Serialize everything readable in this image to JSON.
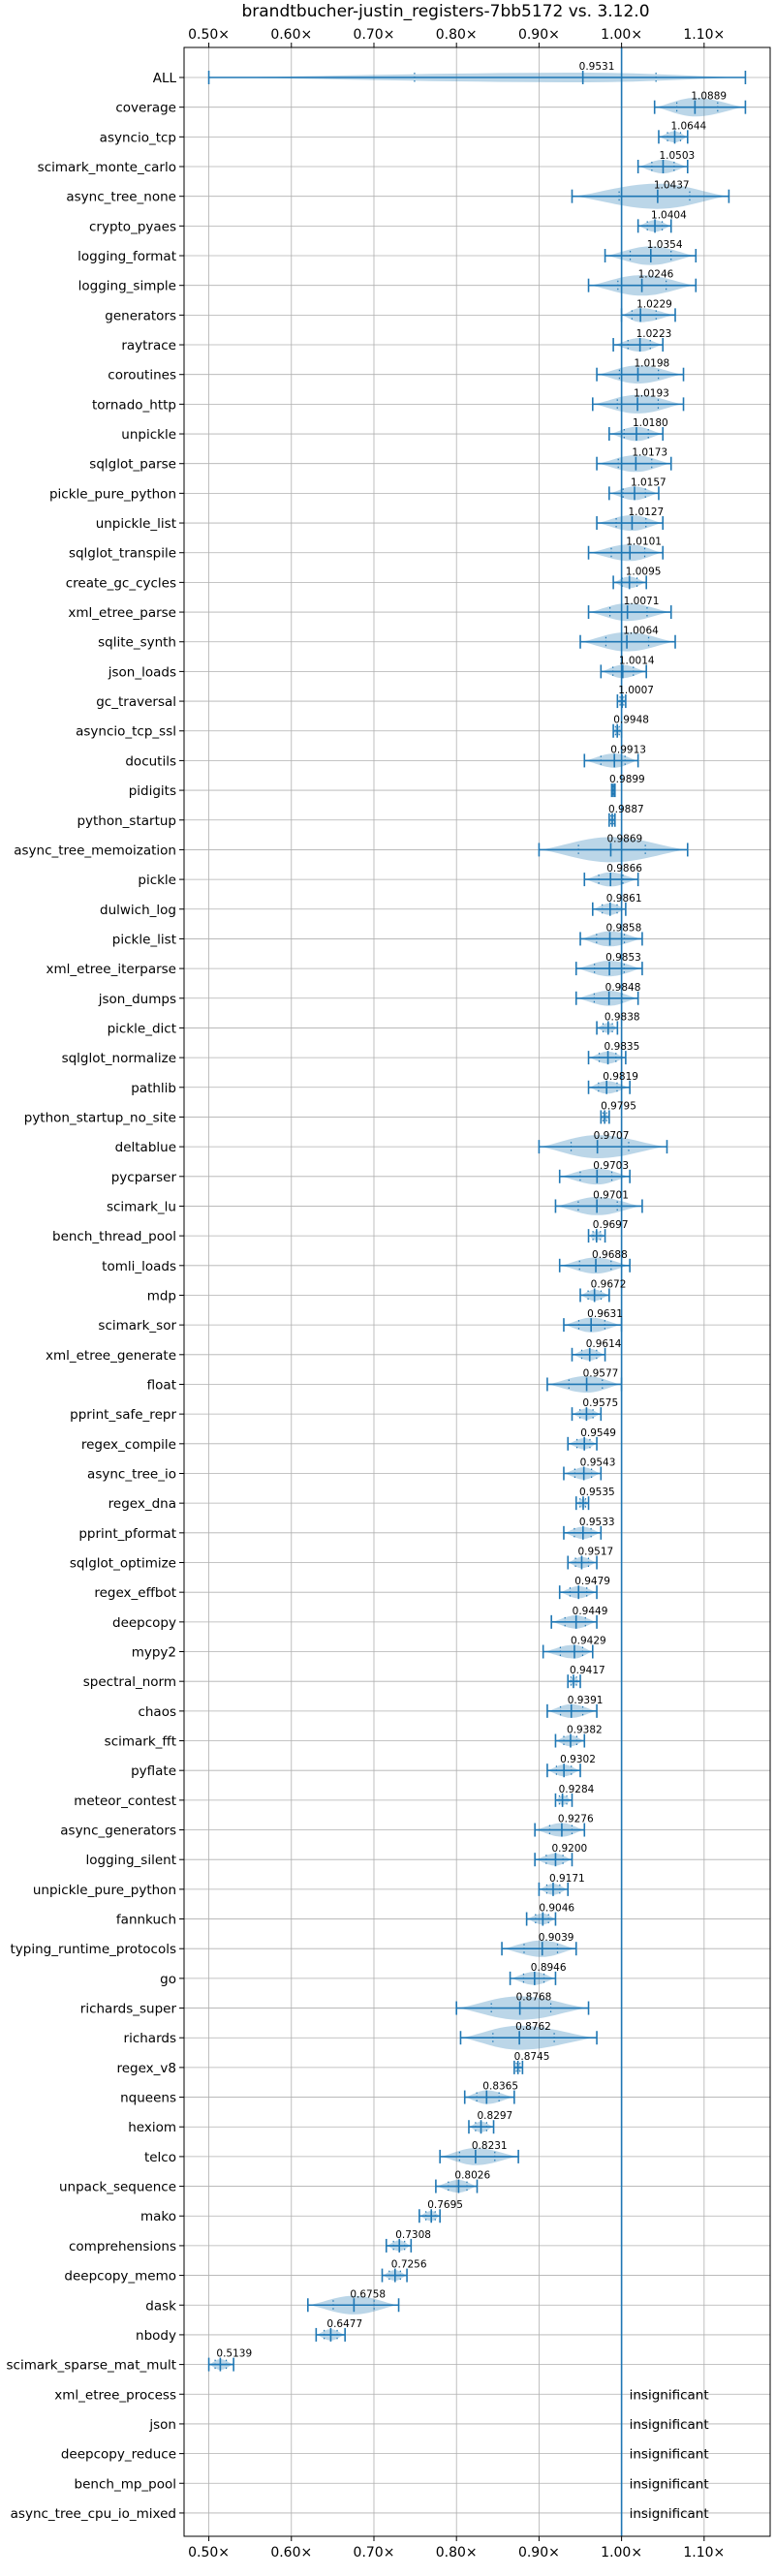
{
  "chart_data": {
    "type": "violin",
    "title": "brandtbucher-justin_registers-7bb5172 vs. 3.12.0",
    "xlim": [
      0.47,
      1.18
    ],
    "x_ticks": [
      0.5,
      0.6,
      0.7,
      0.8,
      0.9,
      1.0,
      1.1
    ],
    "x_tick_labels": [
      "0.50×",
      "0.60×",
      "0.70×",
      "0.80×",
      "0.90×",
      "1.00×",
      "1.10×"
    ],
    "reference_line": 1.0,
    "grid": true,
    "ticks_on_top_and_bottom": true,
    "color": "#1f77b4",
    "insignificant_label": "insignificant",
    "benchmarks": [
      {
        "name": "ALL",
        "value": 0.9531,
        "label": "0.9531",
        "min": 0.5,
        "max": 1.15
      },
      {
        "name": "coverage",
        "value": 1.0889,
        "label": "1.0889",
        "min": 1.04,
        "max": 1.15
      },
      {
        "name": "asyncio_tcp",
        "value": 1.0644,
        "label": "1.0644",
        "min": 1.045,
        "max": 1.08
      },
      {
        "name": "scimark_monte_carlo",
        "value": 1.0503,
        "label": "1.0503",
        "min": 1.02,
        "max": 1.08
      },
      {
        "name": "async_tree_none",
        "value": 1.0437,
        "label": "1.0437",
        "min": 0.94,
        "max": 1.13
      },
      {
        "name": "crypto_pyaes",
        "value": 1.0404,
        "label": "1.0404",
        "min": 1.02,
        "max": 1.06
      },
      {
        "name": "logging_format",
        "value": 1.0354,
        "label": "1.0354",
        "min": 0.98,
        "max": 1.09
      },
      {
        "name": "logging_simple",
        "value": 1.0246,
        "label": "1.0246",
        "min": 0.96,
        "max": 1.09
      },
      {
        "name": "generators",
        "value": 1.0229,
        "label": "1.0229",
        "min": 1.0,
        "max": 1.065
      },
      {
        "name": "raytrace",
        "value": 1.0223,
        "label": "1.0223",
        "min": 0.99,
        "max": 1.05
      },
      {
        "name": "coroutines",
        "value": 1.0198,
        "label": "1.0198",
        "min": 0.97,
        "max": 1.075
      },
      {
        "name": "tornado_http",
        "value": 1.0193,
        "label": "1.0193",
        "min": 0.965,
        "max": 1.075
      },
      {
        "name": "unpickle",
        "value": 1.018,
        "label": "1.0180",
        "min": 0.985,
        "max": 1.05
      },
      {
        "name": "sqlglot_parse",
        "value": 1.0173,
        "label": "1.0173",
        "min": 0.97,
        "max": 1.06
      },
      {
        "name": "pickle_pure_python",
        "value": 1.0157,
        "label": "1.0157",
        "min": 0.985,
        "max": 1.045
      },
      {
        "name": "unpickle_list",
        "value": 1.0127,
        "label": "1.0127",
        "min": 0.97,
        "max": 1.05
      },
      {
        "name": "sqlglot_transpile",
        "value": 1.0101,
        "label": "1.0101",
        "min": 0.96,
        "max": 1.05
      },
      {
        "name": "create_gc_cycles",
        "value": 1.0095,
        "label": "1.0095",
        "min": 0.99,
        "max": 1.03
      },
      {
        "name": "xml_etree_parse",
        "value": 1.0071,
        "label": "1.0071",
        "min": 0.96,
        "max": 1.06
      },
      {
        "name": "sqlite_synth",
        "value": 1.0064,
        "label": "1.0064",
        "min": 0.95,
        "max": 1.065
      },
      {
        "name": "json_loads",
        "value": 1.0014,
        "label": "1.0014",
        "min": 0.975,
        "max": 1.03
      },
      {
        "name": "gc_traversal",
        "value": 1.0007,
        "label": "1.0007",
        "min": 0.995,
        "max": 1.005
      },
      {
        "name": "asyncio_tcp_ssl",
        "value": 0.9948,
        "label": "0.9948",
        "min": 0.99,
        "max": 1.0
      },
      {
        "name": "docutils",
        "value": 0.9913,
        "label": "0.9913",
        "min": 0.955,
        "max": 1.02
      },
      {
        "name": "pidigits",
        "value": 0.9899,
        "label": "0.9899",
        "min": 0.988,
        "max": 0.992
      },
      {
        "name": "python_startup",
        "value": 0.9887,
        "label": "0.9887",
        "min": 0.985,
        "max": 0.992
      },
      {
        "name": "async_tree_memoization",
        "value": 0.9869,
        "label": "0.9869",
        "min": 0.9,
        "max": 1.08
      },
      {
        "name": "pickle",
        "value": 0.9866,
        "label": "0.9866",
        "min": 0.955,
        "max": 1.02
      },
      {
        "name": "dulwich_log",
        "value": 0.9861,
        "label": "0.9861",
        "min": 0.965,
        "max": 1.005
      },
      {
        "name": "pickle_list",
        "value": 0.9858,
        "label": "0.9858",
        "min": 0.95,
        "max": 1.025
      },
      {
        "name": "xml_etree_iterparse",
        "value": 0.9853,
        "label": "0.9853",
        "min": 0.945,
        "max": 1.025
      },
      {
        "name": "json_dumps",
        "value": 0.9848,
        "label": "0.9848",
        "min": 0.945,
        "max": 1.02
      },
      {
        "name": "pickle_dict",
        "value": 0.9838,
        "label": "0.9838",
        "min": 0.97,
        "max": 0.995
      },
      {
        "name": "sqlglot_normalize",
        "value": 0.9835,
        "label": "0.9835",
        "min": 0.96,
        "max": 1.005
      },
      {
        "name": "pathlib",
        "value": 0.9819,
        "label": "0.9819",
        "min": 0.96,
        "max": 1.01
      },
      {
        "name": "python_startup_no_site",
        "value": 0.9795,
        "label": "0.9795",
        "min": 0.975,
        "max": 0.985
      },
      {
        "name": "deltablue",
        "value": 0.9707,
        "label": "0.9707",
        "min": 0.9,
        "max": 1.055
      },
      {
        "name": "pycparser",
        "value": 0.9703,
        "label": "0.9703",
        "min": 0.925,
        "max": 1.01
      },
      {
        "name": "scimark_lu",
        "value": 0.9701,
        "label": "0.9701",
        "min": 0.92,
        "max": 1.025
      },
      {
        "name": "bench_thread_pool",
        "value": 0.9697,
        "label": "0.9697",
        "min": 0.96,
        "max": 0.98
      },
      {
        "name": "tomli_loads",
        "value": 0.9688,
        "label": "0.9688",
        "min": 0.925,
        "max": 1.01
      },
      {
        "name": "mdp",
        "value": 0.9672,
        "label": "0.9672",
        "min": 0.95,
        "max": 0.985
      },
      {
        "name": "scimark_sor",
        "value": 0.9631,
        "label": "0.9631",
        "min": 0.93,
        "max": 1.0
      },
      {
        "name": "xml_etree_generate",
        "value": 0.9614,
        "label": "0.9614",
        "min": 0.94,
        "max": 0.98
      },
      {
        "name": "float",
        "value": 0.9577,
        "label": "0.9577",
        "min": 0.91,
        "max": 1.0
      },
      {
        "name": "pprint_safe_repr",
        "value": 0.9575,
        "label": "0.9575",
        "min": 0.94,
        "max": 0.975
      },
      {
        "name": "regex_compile",
        "value": 0.9549,
        "label": "0.9549",
        "min": 0.935,
        "max": 0.97
      },
      {
        "name": "async_tree_io",
        "value": 0.9543,
        "label": "0.9543",
        "min": 0.93,
        "max": 0.975
      },
      {
        "name": "regex_dna",
        "value": 0.9535,
        "label": "0.9535",
        "min": 0.945,
        "max": 0.96
      },
      {
        "name": "pprint_pformat",
        "value": 0.9533,
        "label": "0.9533",
        "min": 0.93,
        "max": 0.975
      },
      {
        "name": "sqlglot_optimize",
        "value": 0.9517,
        "label": "0.9517",
        "min": 0.935,
        "max": 0.97
      },
      {
        "name": "regex_effbot",
        "value": 0.9479,
        "label": "0.9479",
        "min": 0.925,
        "max": 0.97
      },
      {
        "name": "deepcopy",
        "value": 0.9449,
        "label": "0.9449",
        "min": 0.915,
        "max": 0.97
      },
      {
        "name": "mypy2",
        "value": 0.9429,
        "label": "0.9429",
        "min": 0.905,
        "max": 0.965
      },
      {
        "name": "spectral_norm",
        "value": 0.9417,
        "label": "0.9417",
        "min": 0.935,
        "max": 0.95
      },
      {
        "name": "chaos",
        "value": 0.9391,
        "label": "0.9391",
        "min": 0.91,
        "max": 0.97
      },
      {
        "name": "scimark_fft",
        "value": 0.9382,
        "label": "0.9382",
        "min": 0.92,
        "max": 0.955
      },
      {
        "name": "pyflate",
        "value": 0.9302,
        "label": "0.9302",
        "min": 0.91,
        "max": 0.95
      },
      {
        "name": "meteor_contest",
        "value": 0.9284,
        "label": "0.9284",
        "min": 0.92,
        "max": 0.94
      },
      {
        "name": "async_generators",
        "value": 0.9276,
        "label": "0.9276",
        "min": 0.895,
        "max": 0.955
      },
      {
        "name": "logging_silent",
        "value": 0.92,
        "label": "0.9200",
        "min": 0.895,
        "max": 0.94
      },
      {
        "name": "unpickle_pure_python",
        "value": 0.9171,
        "label": "0.9171",
        "min": 0.9,
        "max": 0.935
      },
      {
        "name": "fannkuch",
        "value": 0.9046,
        "label": "0.9046",
        "min": 0.885,
        "max": 0.92
      },
      {
        "name": "typing_runtime_protocols",
        "value": 0.9039,
        "label": "0.9039",
        "min": 0.855,
        "max": 0.945
      },
      {
        "name": "go",
        "value": 0.8946,
        "label": "0.8946",
        "min": 0.865,
        "max": 0.92
      },
      {
        "name": "richards_super",
        "value": 0.8768,
        "label": "0.8768",
        "min": 0.8,
        "max": 0.96
      },
      {
        "name": "richards",
        "value": 0.8762,
        "label": "0.8762",
        "min": 0.805,
        "max": 0.97
      },
      {
        "name": "regex_v8",
        "value": 0.8745,
        "label": "0.8745",
        "min": 0.87,
        "max": 0.88
      },
      {
        "name": "nqueens",
        "value": 0.8365,
        "label": "0.8365",
        "min": 0.81,
        "max": 0.87
      },
      {
        "name": "hexiom",
        "value": 0.8297,
        "label": "0.8297",
        "min": 0.815,
        "max": 0.845
      },
      {
        "name": "telco",
        "value": 0.8231,
        "label": "0.8231",
        "min": 0.78,
        "max": 0.875
      },
      {
        "name": "unpack_sequence",
        "value": 0.8026,
        "label": "0.8026",
        "min": 0.775,
        "max": 0.825
      },
      {
        "name": "mako",
        "value": 0.7695,
        "label": "0.7695",
        "min": 0.755,
        "max": 0.78
      },
      {
        "name": "comprehensions",
        "value": 0.7308,
        "label": "0.7308",
        "min": 0.715,
        "max": 0.745
      },
      {
        "name": "deepcopy_memo",
        "value": 0.7256,
        "label": "0.7256",
        "min": 0.71,
        "max": 0.74
      },
      {
        "name": "dask",
        "value": 0.6758,
        "label": "0.6758",
        "min": 0.62,
        "max": 0.73
      },
      {
        "name": "nbody",
        "value": 0.6477,
        "label": "0.6477",
        "min": 0.63,
        "max": 0.665
      },
      {
        "name": "scimark_sparse_mat_mult",
        "value": 0.5139,
        "label": "0.5139",
        "min": 0.5,
        "max": 0.53
      },
      {
        "name": "xml_etree_process",
        "insignificant": true
      },
      {
        "name": "json",
        "insignificant": true
      },
      {
        "name": "deepcopy_reduce",
        "insignificant": true
      },
      {
        "name": "bench_mp_pool",
        "insignificant": true
      },
      {
        "name": "async_tree_cpu_io_mixed",
        "insignificant": true
      }
    ]
  }
}
